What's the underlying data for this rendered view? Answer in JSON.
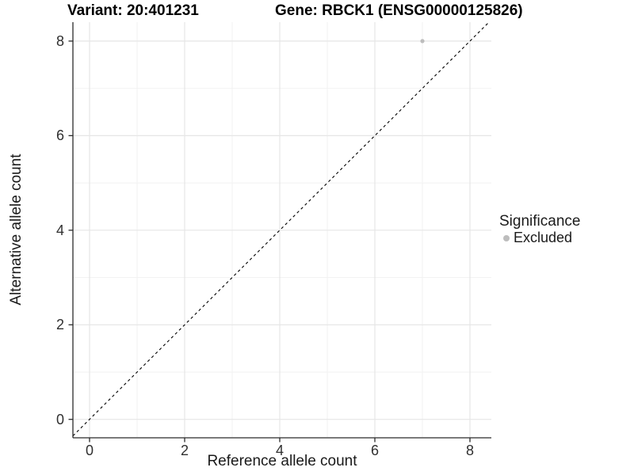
{
  "title": {
    "variant": "Variant: 20:401231",
    "gene": "Gene: RBCK1 (ENSG00000125826)"
  },
  "chart_data": {
    "type": "scatter",
    "xlabel": "Reference allele count",
    "ylabel": "Alternative allele count",
    "xlim": [
      -0.35,
      8.45
    ],
    "ylim": [
      -0.39,
      8.4
    ],
    "xticks": [
      0,
      2,
      4,
      6,
      8
    ],
    "yticks": [
      0,
      2,
      4,
      6,
      8
    ],
    "minor_xticks": [
      1,
      3,
      5,
      7
    ],
    "minor_yticks": [
      1,
      3,
      5,
      7
    ],
    "grid": true,
    "points": [
      {
        "x": 7,
        "y": 8,
        "series": "Excluded"
      }
    ],
    "series": [
      {
        "name": "Excluded",
        "color": "#bdbdbd"
      }
    ],
    "reference_line": {
      "type": "identity",
      "style": "dashed",
      "color": "#000000"
    },
    "legend": {
      "title": "Significance",
      "position": "right",
      "entries": [
        {
          "label": "Excluded",
          "color": "#bdbdbd"
        }
      ]
    }
  },
  "colors": {
    "background": "#ffffff",
    "grid_major": "#e6e6e6",
    "grid_minor": "#f2f2f2",
    "axis_line": "#2b2b2b",
    "tick_text": "#303030",
    "title_text": "#000000",
    "point": "#bdbdbd",
    "dashed_line": "#000000"
  }
}
